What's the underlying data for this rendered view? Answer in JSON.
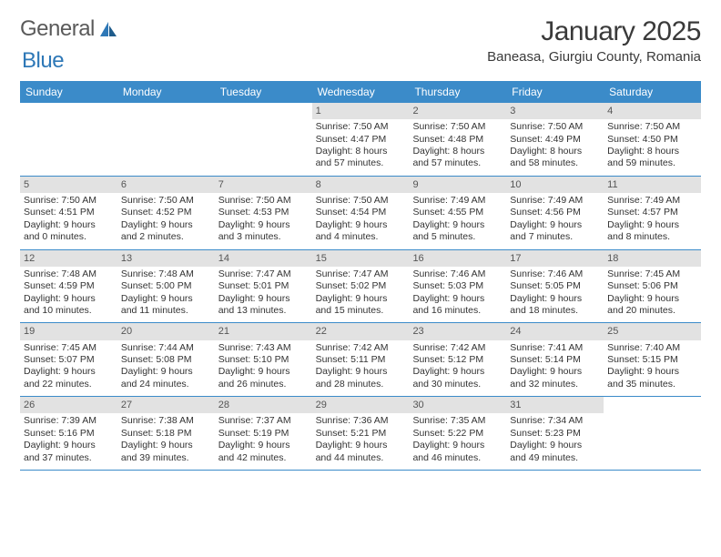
{
  "logo": {
    "part1": "General",
    "part2": "Blue"
  },
  "header": {
    "month_title": "January 2025",
    "location": "Baneasa, Giurgiu County, Romania"
  },
  "colors": {
    "header_bar": "#3b8bc9",
    "daynum_bg": "#e2e2e2",
    "logo_gray": "#5a5a5a",
    "logo_blue": "#2e78b7",
    "text": "#333333",
    "row_border": "#3b8bc9"
  },
  "days_of_week": [
    "Sunday",
    "Monday",
    "Tuesday",
    "Wednesday",
    "Thursday",
    "Friday",
    "Saturday"
  ],
  "weeks": [
    [
      null,
      null,
      null,
      {
        "n": "1",
        "sunrise": "7:50 AM",
        "sunset": "4:47 PM",
        "daylight": "8 hours and 57 minutes."
      },
      {
        "n": "2",
        "sunrise": "7:50 AM",
        "sunset": "4:48 PM",
        "daylight": "8 hours and 57 minutes."
      },
      {
        "n": "3",
        "sunrise": "7:50 AM",
        "sunset": "4:49 PM",
        "daylight": "8 hours and 58 minutes."
      },
      {
        "n": "4",
        "sunrise": "7:50 AM",
        "sunset": "4:50 PM",
        "daylight": "8 hours and 59 minutes."
      }
    ],
    [
      {
        "n": "5",
        "sunrise": "7:50 AM",
        "sunset": "4:51 PM",
        "daylight": "9 hours and 0 minutes."
      },
      {
        "n": "6",
        "sunrise": "7:50 AM",
        "sunset": "4:52 PM",
        "daylight": "9 hours and 2 minutes."
      },
      {
        "n": "7",
        "sunrise": "7:50 AM",
        "sunset": "4:53 PM",
        "daylight": "9 hours and 3 minutes."
      },
      {
        "n": "8",
        "sunrise": "7:50 AM",
        "sunset": "4:54 PM",
        "daylight": "9 hours and 4 minutes."
      },
      {
        "n": "9",
        "sunrise": "7:49 AM",
        "sunset": "4:55 PM",
        "daylight": "9 hours and 5 minutes."
      },
      {
        "n": "10",
        "sunrise": "7:49 AM",
        "sunset": "4:56 PM",
        "daylight": "9 hours and 7 minutes."
      },
      {
        "n": "11",
        "sunrise": "7:49 AM",
        "sunset": "4:57 PM",
        "daylight": "9 hours and 8 minutes."
      }
    ],
    [
      {
        "n": "12",
        "sunrise": "7:48 AM",
        "sunset": "4:59 PM",
        "daylight": "9 hours and 10 minutes."
      },
      {
        "n": "13",
        "sunrise": "7:48 AM",
        "sunset": "5:00 PM",
        "daylight": "9 hours and 11 minutes."
      },
      {
        "n": "14",
        "sunrise": "7:47 AM",
        "sunset": "5:01 PM",
        "daylight": "9 hours and 13 minutes."
      },
      {
        "n": "15",
        "sunrise": "7:47 AM",
        "sunset": "5:02 PM",
        "daylight": "9 hours and 15 minutes."
      },
      {
        "n": "16",
        "sunrise": "7:46 AM",
        "sunset": "5:03 PM",
        "daylight": "9 hours and 16 minutes."
      },
      {
        "n": "17",
        "sunrise": "7:46 AM",
        "sunset": "5:05 PM",
        "daylight": "9 hours and 18 minutes."
      },
      {
        "n": "18",
        "sunrise": "7:45 AM",
        "sunset": "5:06 PM",
        "daylight": "9 hours and 20 minutes."
      }
    ],
    [
      {
        "n": "19",
        "sunrise": "7:45 AM",
        "sunset": "5:07 PM",
        "daylight": "9 hours and 22 minutes."
      },
      {
        "n": "20",
        "sunrise": "7:44 AM",
        "sunset": "5:08 PM",
        "daylight": "9 hours and 24 minutes."
      },
      {
        "n": "21",
        "sunrise": "7:43 AM",
        "sunset": "5:10 PM",
        "daylight": "9 hours and 26 minutes."
      },
      {
        "n": "22",
        "sunrise": "7:42 AM",
        "sunset": "5:11 PM",
        "daylight": "9 hours and 28 minutes."
      },
      {
        "n": "23",
        "sunrise": "7:42 AM",
        "sunset": "5:12 PM",
        "daylight": "9 hours and 30 minutes."
      },
      {
        "n": "24",
        "sunrise": "7:41 AM",
        "sunset": "5:14 PM",
        "daylight": "9 hours and 32 minutes."
      },
      {
        "n": "25",
        "sunrise": "7:40 AM",
        "sunset": "5:15 PM",
        "daylight": "9 hours and 35 minutes."
      }
    ],
    [
      {
        "n": "26",
        "sunrise": "7:39 AM",
        "sunset": "5:16 PM",
        "daylight": "9 hours and 37 minutes."
      },
      {
        "n": "27",
        "sunrise": "7:38 AM",
        "sunset": "5:18 PM",
        "daylight": "9 hours and 39 minutes."
      },
      {
        "n": "28",
        "sunrise": "7:37 AM",
        "sunset": "5:19 PM",
        "daylight": "9 hours and 42 minutes."
      },
      {
        "n": "29",
        "sunrise": "7:36 AM",
        "sunset": "5:21 PM",
        "daylight": "9 hours and 44 minutes."
      },
      {
        "n": "30",
        "sunrise": "7:35 AM",
        "sunset": "5:22 PM",
        "daylight": "9 hours and 46 minutes."
      },
      {
        "n": "31",
        "sunrise": "7:34 AM",
        "sunset": "5:23 PM",
        "daylight": "9 hours and 49 minutes."
      },
      null
    ]
  ],
  "labels": {
    "sunrise": "Sunrise:",
    "sunset": "Sunset:",
    "daylight": "Daylight:"
  }
}
